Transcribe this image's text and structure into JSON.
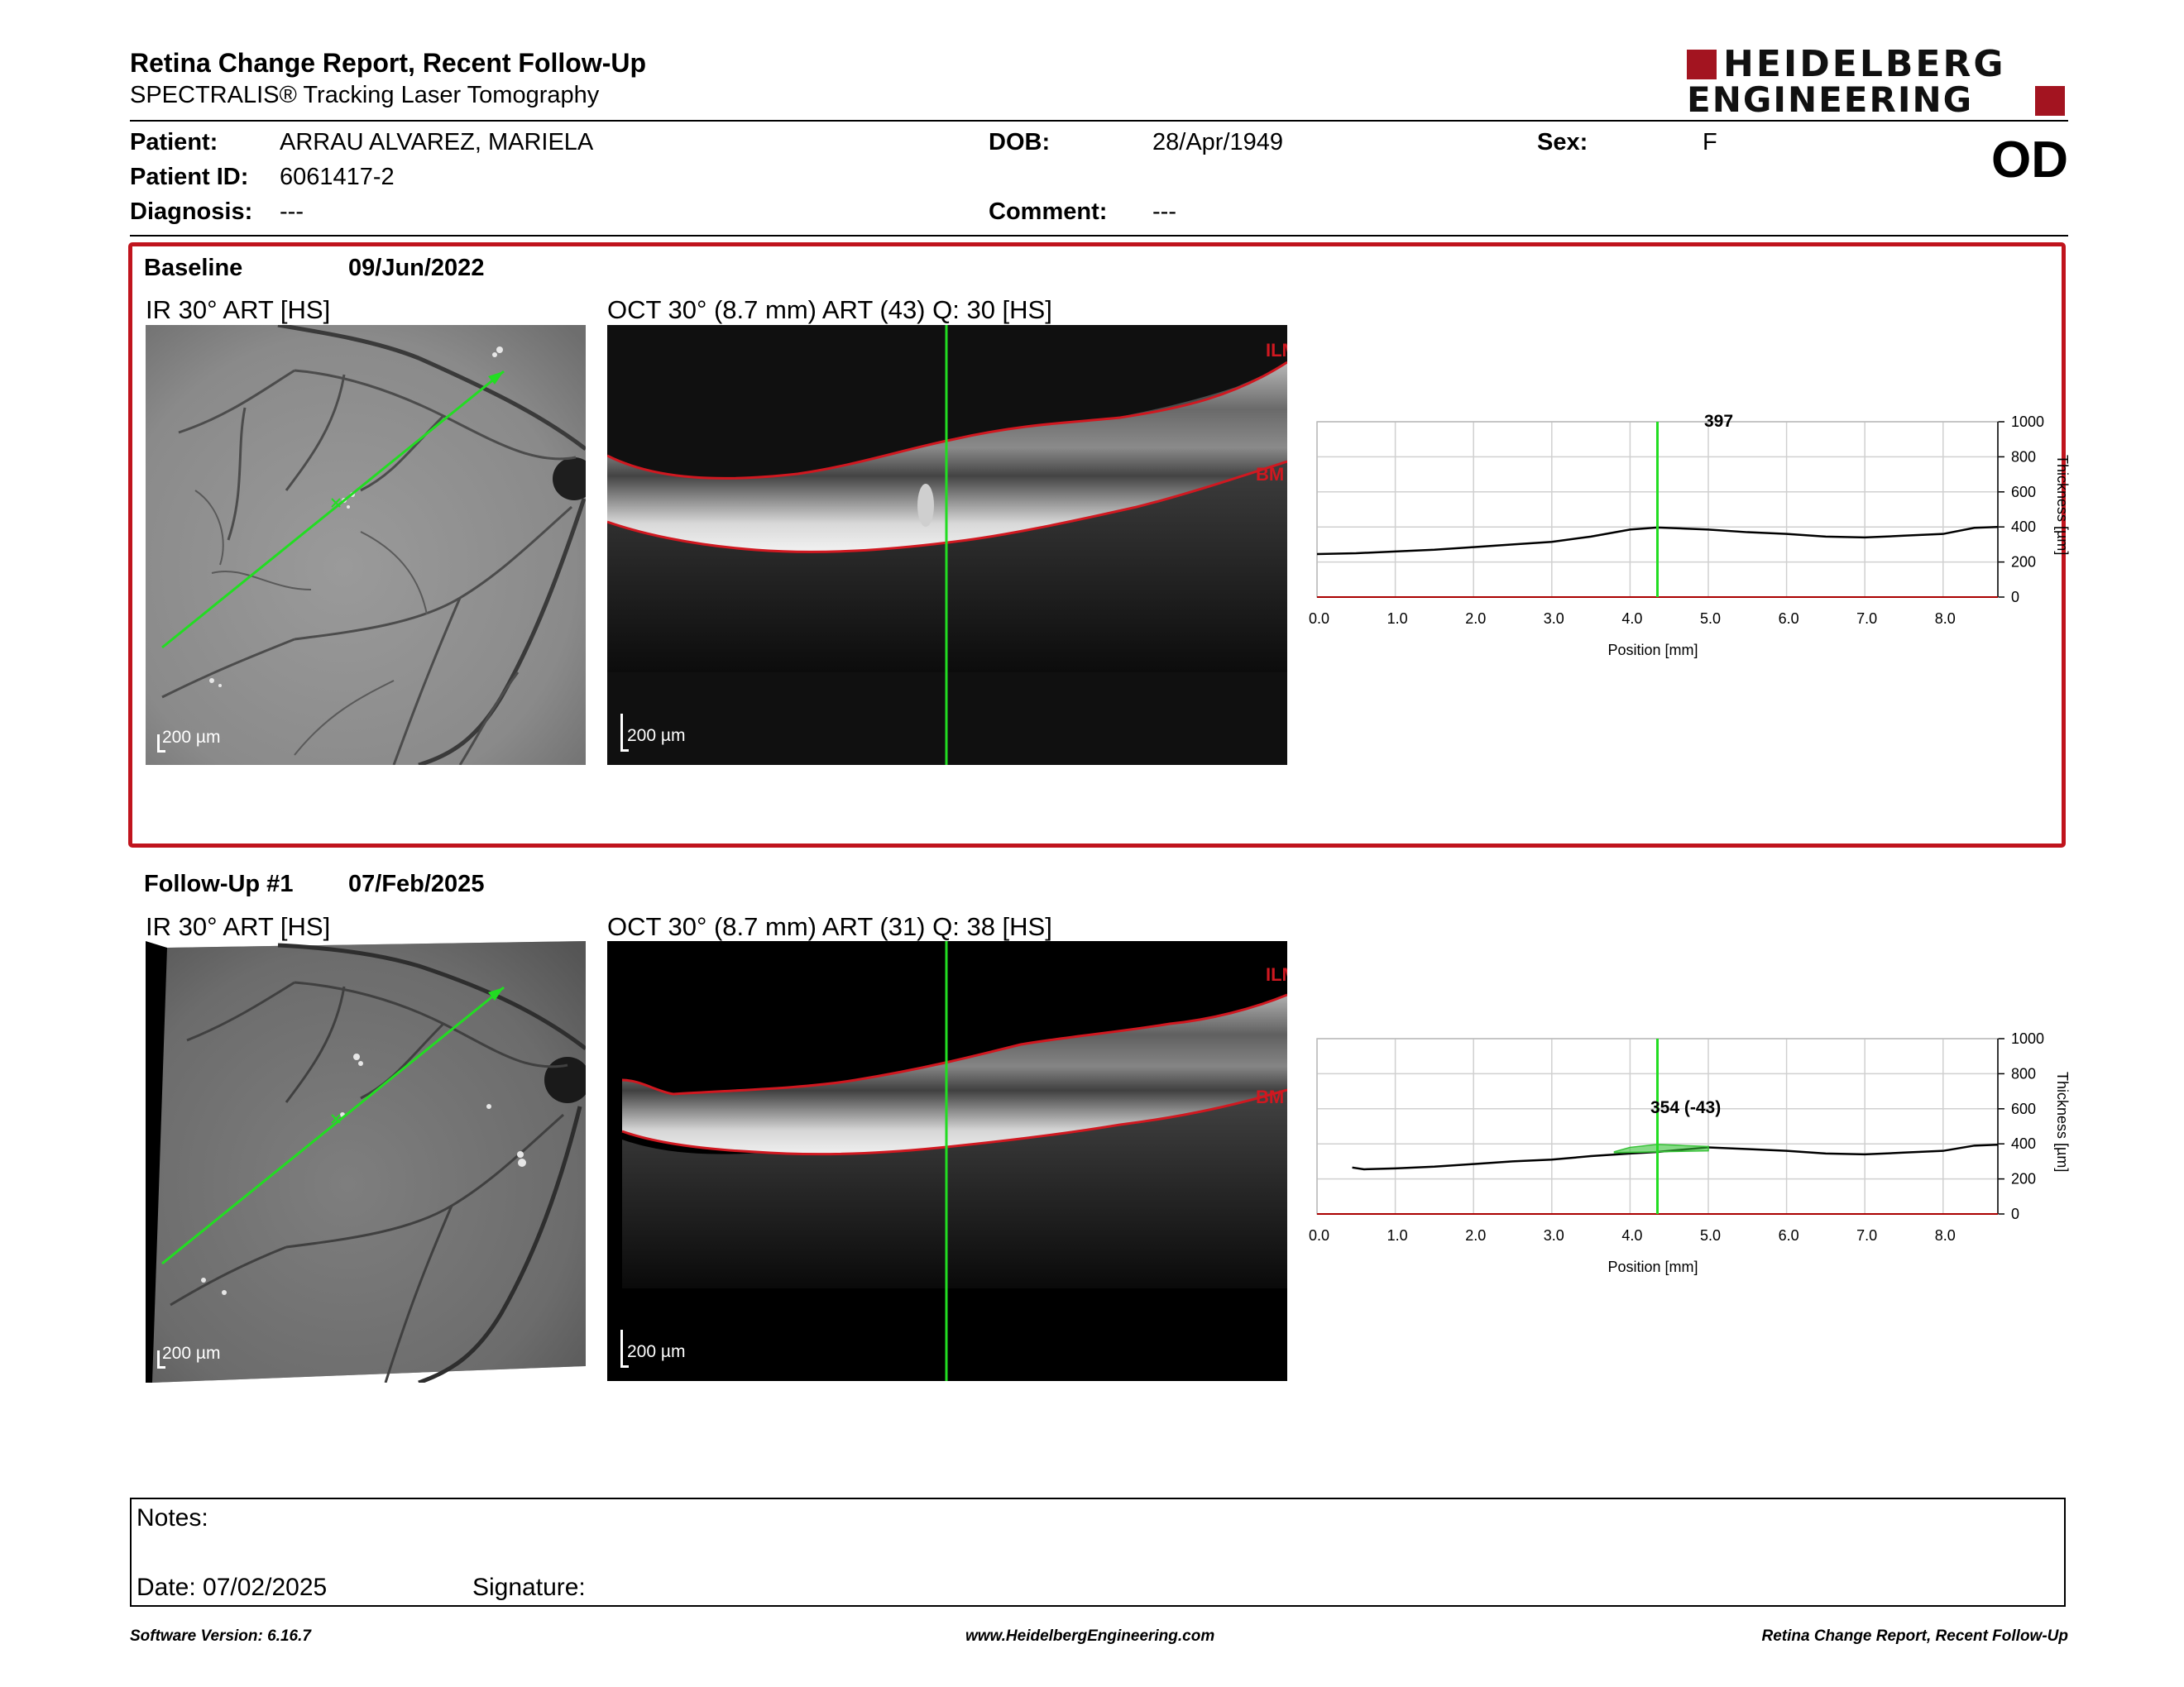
{
  "header": {
    "title": "Retina Change Report, Recent Follow-Up",
    "subtitle": "SPECTRALIS® Tracking Laser Tomography",
    "logo_line1": "HEIDELBERG",
    "logo_line2": "ENGINEERING",
    "eye": "OD"
  },
  "patient": {
    "name_label": "Patient:",
    "name": "ARRAU ALVAREZ, MARIELA",
    "id_label": "Patient ID:",
    "id": "6061417-2",
    "diagnosis_label": "Diagnosis:",
    "diagnosis": "---",
    "dob_label": "DOB:",
    "dob": "28/Apr/1949",
    "comment_label": "Comment:",
    "comment": "---",
    "sex_label": "Sex:",
    "sex": "F"
  },
  "baseline": {
    "label": "Baseline",
    "date": "09/Jun/2022",
    "ir_caption": "IR 30° ART [HS]",
    "oct_caption": "OCT 30° (8.7 mm) ART (43) Q: 30 [HS]",
    "scale": "200 µm",
    "ilm": "ILM",
    "bm": "BM",
    "marker_value": "397"
  },
  "followup": {
    "label": "Follow-Up #1",
    "date": "07/Feb/2025",
    "ir_caption": "IR 30° ART [HS]",
    "oct_caption": "OCT 30° (8.7 mm) ART (31) Q: 38 [HS]",
    "scale": "200 µm",
    "ilm": "ILM",
    "bm": "BM",
    "marker_value": "354 (-43)"
  },
  "chart_data": [
    {
      "type": "line",
      "xlabel": "Position [mm]",
      "ylabel": "Thickness [µm]",
      "xlim": [
        0,
        8.7
      ],
      "ylim": [
        0,
        1000
      ],
      "xticks": [
        "0.0",
        "1.0",
        "2.0",
        "3.0",
        "4.0",
        "5.0",
        "6.0",
        "7.0",
        "8.0"
      ],
      "yticks": [
        "0",
        "200",
        "400",
        "600",
        "800",
        "1000"
      ],
      "marker_x": 4.35,
      "series": [
        {
          "x": [
            0.0,
            0.5,
            1.0,
            1.5,
            2.0,
            2.5,
            3.0,
            3.5,
            4.0,
            4.35,
            5.0,
            5.5,
            6.0,
            6.5,
            7.0,
            7.5,
            8.0,
            8.4,
            8.7
          ],
          "values": [
            245,
            250,
            260,
            270,
            285,
            300,
            315,
            345,
            385,
            397,
            385,
            370,
            360,
            345,
            340,
            350,
            360,
            395,
            400
          ],
          "color": "#000000"
        }
      ],
      "grid": true
    },
    {
      "type": "line",
      "xlabel": "Position [mm]",
      "ylabel": "Thickness [µm]",
      "xlim": [
        0,
        8.7
      ],
      "ylim": [
        0,
        1000
      ],
      "xticks": [
        "0.0",
        "1.0",
        "2.0",
        "3.0",
        "4.0",
        "5.0",
        "6.0",
        "7.0",
        "8.0"
      ],
      "yticks": [
        "0",
        "200",
        "400",
        "600",
        "800",
        "1000"
      ],
      "marker_x": 4.35,
      "series": [
        {
          "x": [
            0.45,
            0.6,
            1.0,
            1.5,
            2.0,
            2.5,
            3.0,
            3.5,
            4.0,
            4.35,
            5.0,
            5.5,
            6.0,
            6.5,
            7.0,
            7.5,
            8.0,
            8.4,
            8.7
          ],
          "values": [
            265,
            255,
            260,
            270,
            285,
            300,
            310,
            330,
            345,
            354,
            380,
            370,
            360,
            345,
            340,
            350,
            360,
            390,
            395
          ],
          "color": "#000000"
        },
        {
          "x": [
            3.8,
            4.0,
            4.35,
            4.7,
            5.0
          ],
          "values": [
            355,
            380,
            397,
            390,
            385
          ],
          "color": "#36c236"
        }
      ],
      "grid": true
    }
  ],
  "notes": {
    "label": "Notes:",
    "date": "Date: 07/02/2025",
    "signature": "Signature:"
  },
  "footer": {
    "left": "Software Version: 6.16.7",
    "center": "www.HeidelbergEngineering.com",
    "right": "Retina Change Report, Recent Follow-Up"
  },
  "colors": {
    "accent": "#c0141d",
    "marker": "#22dd22",
    "logo": "#a31420"
  }
}
